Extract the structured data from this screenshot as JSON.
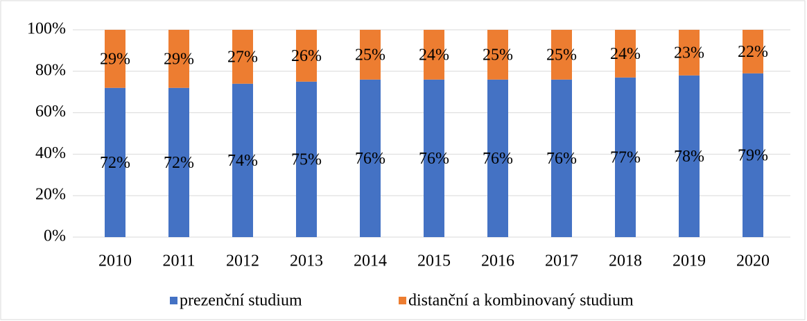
{
  "chart_data": {
    "type": "bar",
    "stacked": true,
    "categories": [
      "2010",
      "2011",
      "2012",
      "2013",
      "2014",
      "2015",
      "2016",
      "2017",
      "2018",
      "2019",
      "2020"
    ],
    "series": [
      {
        "name": "prezenční studium",
        "color": "#4472c4",
        "values": [
          72,
          72,
          74,
          75,
          76,
          76,
          76,
          76,
          77,
          78,
          79
        ],
        "value_labels": [
          "72%",
          "72%",
          "74%",
          "75%",
          "76%",
          "76%",
          "76%",
          "76%",
          "77%",
          "78%",
          "79%"
        ]
      },
      {
        "name": "distanční a kombinovaný studium",
        "color": "#ed7d31",
        "values": [
          29,
          29,
          27,
          26,
          25,
          24,
          25,
          25,
          24,
          23,
          22
        ],
        "value_labels": [
          "29%",
          "29%",
          "27%",
          "26%",
          "25%",
          "24%",
          "25%",
          "25%",
          "24%",
          "23%",
          "22%"
        ]
      }
    ],
    "ylim": [
      0,
      100
    ],
    "yticks": [
      {
        "value": 0,
        "label": "0%"
      },
      {
        "value": 20,
        "label": "20%"
      },
      {
        "value": 40,
        "label": "40%"
      },
      {
        "value": 60,
        "label": "60%"
      },
      {
        "value": 80,
        "label": "80%"
      },
      {
        "value": 100,
        "label": "100%"
      }
    ],
    "grid": true,
    "legend": "bottom"
  }
}
